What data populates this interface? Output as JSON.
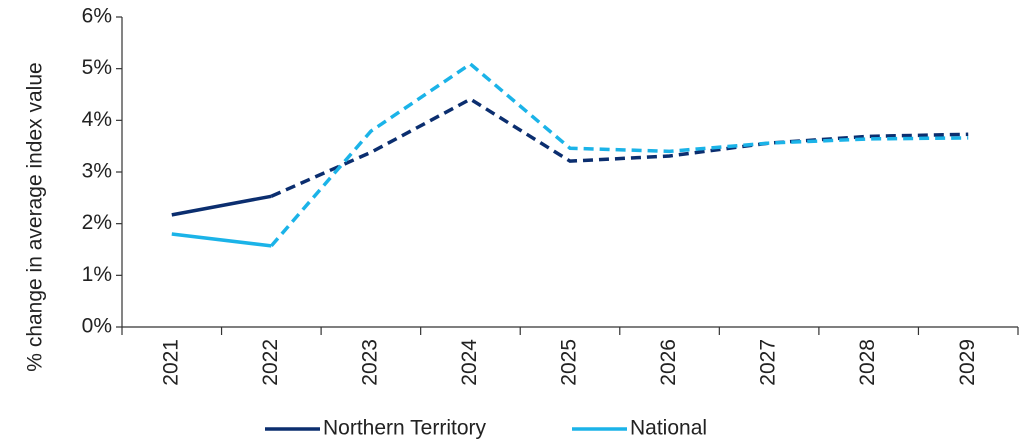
{
  "chart_data": {
    "type": "line",
    "y_label": "% change in average index value",
    "categories": [
      "2021",
      "2022",
      "2023",
      "2024",
      "2025",
      "2026",
      "2027",
      "2028",
      "2029"
    ],
    "series": [
      {
        "name": "Northern Territory",
        "color": "#0b2e6f",
        "values": [
          2.17,
          2.53,
          3.38,
          4.41,
          3.21,
          3.31,
          3.56,
          3.69,
          3.73
        ],
        "dash_from_index": 1
      },
      {
        "name": "National",
        "color": "#1bb3e8",
        "values": [
          1.8,
          1.57,
          3.79,
          5.09,
          3.46,
          3.4,
          3.56,
          3.64,
          3.66
        ],
        "dash_from_index": 1
      }
    ],
    "ylim": [
      0,
      6
    ],
    "yticks": [
      {
        "value": 0,
        "label": "0%"
      },
      {
        "value": 1,
        "label": "1%"
      },
      {
        "value": 2,
        "label": "2%"
      },
      {
        "value": 3,
        "label": "3%"
      },
      {
        "value": 4,
        "label": "4%"
      },
      {
        "value": 5,
        "label": "5%"
      },
      {
        "value": 6,
        "label": "6%"
      }
    ],
    "grid": false,
    "legend": "bottom"
  }
}
